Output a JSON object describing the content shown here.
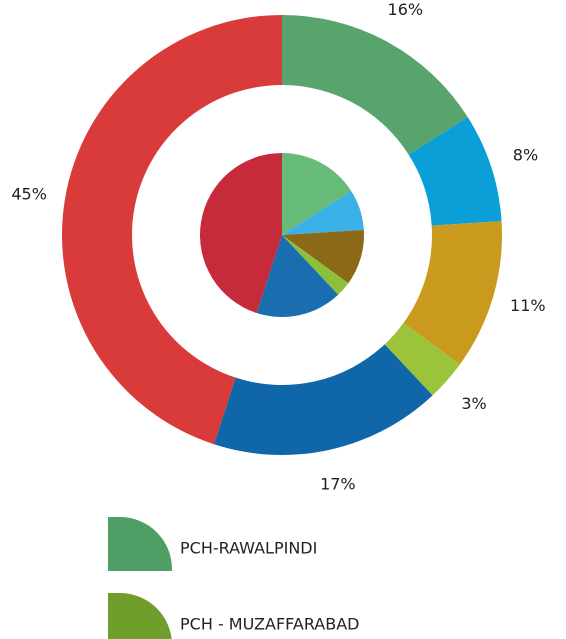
{
  "chart_data": {
    "type": "donut",
    "series": [
      {
        "name": "PCH-RAWALPINDI",
        "color": "#4f9e66",
        "values": [
          16,
          8,
          11,
          3,
          17,
          45
        ],
        "value_labels": [
          "16%",
          "8%",
          "11%",
          "3%",
          "17%",
          "45%"
        ],
        "colors": [
          "#57a46c",
          "#0b9fd8",
          "#c99a1e",
          "#9cc43a",
          "#0f66a8",
          "#d93b3b"
        ]
      },
      {
        "name": "PCH - MUZAFFARABAD",
        "color": "#6f9e2c",
        "values": [
          16,
          8,
          11,
          3,
          17,
          45
        ],
        "colors": [
          "#66bb78",
          "#3ab2e8",
          "#8c6916",
          "#8cc03a",
          "#1a6daf",
          "#c52b3a"
        ]
      }
    ]
  }
}
